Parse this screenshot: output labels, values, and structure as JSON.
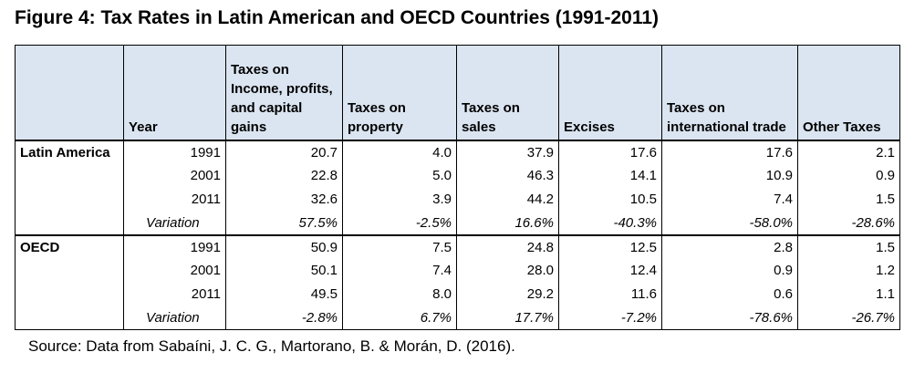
{
  "title": "Figure 4: Tax Rates in Latin American and OECD Countries (1991-2011)",
  "headers": [
    "",
    "Year",
    "Taxes on Income, profits, and capital gains",
    "Taxes on property",
    "Taxes on sales",
    "Excises",
    "Taxes on international trade",
    "Other Taxes"
  ],
  "groups": [
    {
      "region": "Latin America",
      "rows": [
        {
          "year": "1991",
          "values": [
            "20.7",
            "4.0",
            "37.9",
            "17.6",
            "17.6",
            "2.1"
          ]
        },
        {
          "year": "2001",
          "values": [
            "22.8",
            "5.0",
            "46.3",
            "14.1",
            "10.9",
            "0.9"
          ]
        },
        {
          "year": "2011",
          "values": [
            "32.6",
            "3.9",
            "44.2",
            "10.5",
            "7.4",
            "1.5"
          ]
        },
        {
          "year": "Variation",
          "values": [
            "57.5%",
            "-2.5%",
            "16.6%",
            "-40.3%",
            "-58.0%",
            "-28.6%"
          ]
        }
      ]
    },
    {
      "region": "OECD",
      "rows": [
        {
          "year": "1991",
          "values": [
            "50.9",
            "7.5",
            "24.8",
            "12.5",
            "2.8",
            "1.5"
          ]
        },
        {
          "year": "2001",
          "values": [
            "50.1",
            "7.4",
            "28.0",
            "12.4",
            "0.9",
            "1.2"
          ]
        },
        {
          "year": "2011",
          "values": [
            "49.5",
            "8.0",
            "29.2",
            "11.6",
            "0.6",
            "1.1"
          ]
        },
        {
          "year": "Variation",
          "values": [
            "-2.8%",
            "6.7%",
            "17.7%",
            "-7.2%",
            "-78.6%",
            "-26.7%"
          ]
        }
      ]
    }
  ],
  "source": "Source: Data from Sabaíni, J. C. G., Martorano, B. & Morán, D. (2016).",
  "colors": {
    "header_bg": "#dbe5f1"
  }
}
